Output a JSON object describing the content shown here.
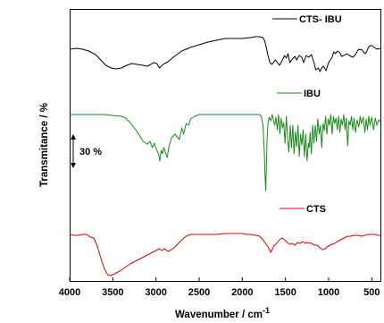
{
  "chart_data": {
    "type": "line",
    "xlabel": "Wavenumber / cm",
    "xlabel_sup": "-1",
    "ylabel": "Transmitance / %",
    "xlim": [
      4000,
      400
    ],
    "x_reversed": true,
    "x_ticks": [
      {
        "value": 4000,
        "label": "4000"
      },
      {
        "value": 3500,
        "label": "3500"
      },
      {
        "value": 3000,
        "label": "3000"
      },
      {
        "value": 2500,
        "label": "2500"
      },
      {
        "value": 2000,
        "label": "2000"
      },
      {
        "value": 1500,
        "label": "1500"
      },
      {
        "value": 1000,
        "label": "1000"
      },
      {
        "value": 500,
        "label": "500"
      }
    ],
    "y_ticks_shown": false,
    "scale_bar_label": "30 %",
    "grid": false,
    "series": [
      {
        "name": "CTS- IBU",
        "color": "#000000",
        "points": [
          [
            4000,
            55
          ],
          [
            3920,
            54
          ],
          [
            3850,
            55
          ],
          [
            3780,
            57
          ],
          [
            3700,
            61
          ],
          [
            3640,
            67
          ],
          [
            3580,
            73
          ],
          [
            3520,
            76
          ],
          [
            3460,
            77
          ],
          [
            3400,
            76
          ],
          [
            3340,
            73
          ],
          [
            3280,
            71
          ],
          [
            3220,
            72
          ],
          [
            3150,
            73
          ],
          [
            3100,
            74
          ],
          [
            3060,
            72
          ],
          [
            3030,
            70
          ],
          [
            2990,
            71
          ],
          [
            2960,
            76
          ],
          [
            2930,
            73
          ],
          [
            2900,
            71
          ],
          [
            2860,
            69
          ],
          [
            2800,
            64
          ],
          [
            2700,
            57
          ],
          [
            2600,
            53
          ],
          [
            2500,
            50
          ],
          [
            2400,
            47
          ],
          [
            2300,
            45
          ],
          [
            2200,
            43
          ],
          [
            2100,
            43
          ],
          [
            2000,
            43
          ],
          [
            1900,
            42
          ],
          [
            1850,
            41
          ],
          [
            1800,
            41
          ],
          [
            1760,
            42
          ],
          [
            1740,
            46
          ],
          [
            1720,
            54
          ],
          [
            1700,
            63
          ],
          [
            1680,
            70
          ],
          [
            1660,
            72
          ],
          [
            1640,
            70
          ],
          [
            1620,
            67
          ],
          [
            1600,
            69
          ],
          [
            1570,
            73
          ],
          [
            1540,
            68
          ],
          [
            1510,
            62
          ],
          [
            1490,
            65
          ],
          [
            1470,
            60
          ],
          [
            1450,
            70
          ],
          [
            1420,
            66
          ],
          [
            1390,
            63
          ],
          [
            1370,
            67
          ],
          [
            1340,
            62
          ],
          [
            1310,
            64
          ],
          [
            1290,
            70
          ],
          [
            1260,
            62
          ],
          [
            1230,
            64
          ],
          [
            1200,
            61
          ],
          [
            1170,
            70
          ],
          [
            1150,
            78
          ],
          [
            1120,
            76
          ],
          [
            1100,
            80
          ],
          [
            1080,
            76
          ],
          [
            1060,
            74
          ],
          [
            1030,
            79
          ],
          [
            1000,
            70
          ],
          [
            960,
            64
          ],
          [
            940,
            58
          ],
          [
            920,
            60
          ],
          [
            900,
            57
          ],
          [
            870,
            59
          ],
          [
            850,
            63
          ],
          [
            820,
            62
          ],
          [
            790,
            60
          ],
          [
            760,
            62
          ],
          [
            720,
            64
          ],
          [
            690,
            61
          ],
          [
            660,
            56
          ],
          [
            640,
            55
          ],
          [
            610,
            56
          ],
          [
            580,
            60
          ],
          [
            560,
            58
          ],
          [
            540,
            53
          ],
          [
            520,
            51
          ],
          [
            500,
            51
          ],
          [
            470,
            53
          ],
          [
            440,
            55
          ],
          [
            400,
            54
          ]
        ]
      },
      {
        "name": "IBU",
        "color": "#1a8a1a",
        "points": [
          [
            4000,
            128
          ],
          [
            3900,
            128
          ],
          [
            3800,
            128
          ],
          [
            3700,
            128
          ],
          [
            3600,
            128
          ],
          [
            3500,
            129
          ],
          [
            3400,
            130
          ],
          [
            3350,
            132
          ],
          [
            3300,
            137
          ],
          [
            3250,
            143
          ],
          [
            3200,
            150
          ],
          [
            3150,
            158
          ],
          [
            3100,
            161
          ],
          [
            3070,
            158
          ],
          [
            3040,
            165
          ],
          [
            3020,
            160
          ],
          [
            2990,
            168
          ],
          [
            2970,
            172
          ],
          [
            2955,
            180
          ],
          [
            2940,
            168
          ],
          [
            2925,
            172
          ],
          [
            2910,
            165
          ],
          [
            2870,
            176
          ],
          [
            2850,
            164
          ],
          [
            2820,
            154
          ],
          [
            2780,
            150
          ],
          [
            2730,
            156
          ],
          [
            2700,
            143
          ],
          [
            2680,
            150
          ],
          [
            2650,
            138
          ],
          [
            2620,
            140
          ],
          [
            2600,
            133
          ],
          [
            2550,
            130
          ],
          [
            2500,
            128
          ],
          [
            2400,
            128
          ],
          [
            2200,
            128
          ],
          [
            2000,
            128
          ],
          [
            1900,
            128
          ],
          [
            1800,
            128
          ],
          [
            1780,
            130
          ],
          [
            1760,
            140
          ],
          [
            1745,
            170
          ],
          [
            1735,
            200
          ],
          [
            1728,
            213
          ],
          [
            1722,
            190
          ],
          [
            1715,
            160
          ],
          [
            1705,
            140
          ],
          [
            1690,
            131
          ],
          [
            1670,
            135
          ],
          [
            1655,
            128
          ],
          [
            1640,
            134
          ],
          [
            1625,
            140
          ],
          [
            1610,
            131
          ],
          [
            1595,
            145
          ],
          [
            1580,
            128
          ],
          [
            1565,
            150
          ],
          [
            1550,
            132
          ],
          [
            1535,
            143
          ],
          [
            1520,
            137
          ],
          [
            1505,
            160
          ],
          [
            1490,
            130
          ],
          [
            1475,
            155
          ],
          [
            1460,
            170
          ],
          [
            1445,
            140
          ],
          [
            1430,
            165
          ],
          [
            1415,
            140
          ],
          [
            1400,
            172
          ],
          [
            1385,
            147
          ],
          [
            1370,
            164
          ],
          [
            1355,
            140
          ],
          [
            1340,
            175
          ],
          [
            1325,
            150
          ],
          [
            1310,
            162
          ],
          [
            1295,
            145
          ],
          [
            1280,
            175
          ],
          [
            1265,
            150
          ],
          [
            1250,
            180
          ],
          [
            1235,
            160
          ],
          [
            1225,
            165
          ],
          [
            1215,
            148
          ],
          [
            1200,
            172
          ],
          [
            1185,
            140
          ],
          [
            1170,
            160
          ],
          [
            1155,
            140
          ],
          [
            1140,
            158
          ],
          [
            1125,
            133
          ],
          [
            1110,
            150
          ],
          [
            1095,
            140
          ],
          [
            1080,
            165
          ],
          [
            1065,
            138
          ],
          [
            1050,
            146
          ],
          [
            1035,
            130
          ],
          [
            1020,
            150
          ],
          [
            1005,
            133
          ],
          [
            990,
            140
          ],
          [
            975,
            128
          ],
          [
            960,
            150
          ],
          [
            945,
            130
          ],
          [
            930,
            138
          ],
          [
            915,
            132
          ],
          [
            900,
            145
          ],
          [
            885,
            130
          ],
          [
            870,
            148
          ],
          [
            855,
            133
          ],
          [
            840,
            140
          ],
          [
            825,
            128
          ],
          [
            810,
            145
          ],
          [
            795,
            132
          ],
          [
            780,
            163
          ],
          [
            765,
            135
          ],
          [
            750,
            140
          ],
          [
            735,
            130
          ],
          [
            720,
            145
          ],
          [
            705,
            132
          ],
          [
            690,
            148
          ],
          [
            670,
            134
          ],
          [
            650,
            142
          ],
          [
            635,
            130
          ],
          [
            620,
            138
          ],
          [
            600,
            131
          ],
          [
            580,
            148
          ],
          [
            565,
            133
          ],
          [
            550,
            145
          ],
          [
            535,
            130
          ],
          [
            520,
            140
          ],
          [
            500,
            131
          ],
          [
            480,
            145
          ],
          [
            460,
            132
          ],
          [
            440,
            140
          ],
          [
            420,
            134
          ],
          [
            400,
            136
          ]
        ]
      },
      {
        "name": "CTS",
        "color": "#dd0000",
        "points": [
          [
            4000,
            262
          ],
          [
            3950,
            263
          ],
          [
            3900,
            263
          ],
          [
            3850,
            262
          ],
          [
            3800,
            262
          ],
          [
            3760,
            265
          ],
          [
            3720,
            266
          ],
          [
            3680,
            275
          ],
          [
            3640,
            288
          ],
          [
            3600,
            300
          ],
          [
            3560,
            307
          ],
          [
            3520,
            308
          ],
          [
            3480,
            306
          ],
          [
            3420,
            303
          ],
          [
            3360,
            299
          ],
          [
            3300,
            295
          ],
          [
            3240,
            292
          ],
          [
            3180,
            289
          ],
          [
            3120,
            286
          ],
          [
            3060,
            283
          ],
          [
            3000,
            280
          ],
          [
            2960,
            278
          ],
          [
            2930,
            280
          ],
          [
            2900,
            278
          ],
          [
            2860,
            281
          ],
          [
            2820,
            279
          ],
          [
            2780,
            276
          ],
          [
            2740,
            272
          ],
          [
            2700,
            268
          ],
          [
            2650,
            264
          ],
          [
            2600,
            262
          ],
          [
            2500,
            262
          ],
          [
            2400,
            262
          ],
          [
            2300,
            262
          ],
          [
            2200,
            261
          ],
          [
            2100,
            261
          ],
          [
            2000,
            261
          ],
          [
            1950,
            262
          ],
          [
            1900,
            262
          ],
          [
            1850,
            263
          ],
          [
            1800,
            264
          ],
          [
            1760,
            268
          ],
          [
            1730,
            272
          ],
          [
            1700,
            276
          ],
          [
            1670,
            282
          ],
          [
            1650,
            278
          ],
          [
            1630,
            274
          ],
          [
            1600,
            272
          ],
          [
            1570,
            268
          ],
          [
            1540,
            266
          ],
          [
            1510,
            268
          ],
          [
            1480,
            271
          ],
          [
            1450,
            273
          ],
          [
            1420,
            272
          ],
          [
            1390,
            274
          ],
          [
            1360,
            271
          ],
          [
            1330,
            272
          ],
          [
            1300,
            270
          ],
          [
            1270,
            272
          ],
          [
            1250,
            271
          ],
          [
            1200,
            272
          ],
          [
            1160,
            274
          ],
          [
            1130,
            274
          ],
          [
            1100,
            277
          ],
          [
            1070,
            279
          ],
          [
            1040,
            278
          ],
          [
            1020,
            276
          ],
          [
            1000,
            275
          ],
          [
            960,
            273
          ],
          [
            930,
            272
          ],
          [
            900,
            270
          ],
          [
            860,
            268
          ],
          [
            820,
            266
          ],
          [
            780,
            264
          ],
          [
            740,
            264
          ],
          [
            700,
            263
          ],
          [
            660,
            263
          ],
          [
            620,
            264
          ],
          [
            580,
            263
          ],
          [
            540,
            262
          ],
          [
            500,
            262
          ],
          [
            460,
            262
          ],
          [
            430,
            263
          ],
          [
            400,
            263
          ]
        ]
      }
    ]
  }
}
